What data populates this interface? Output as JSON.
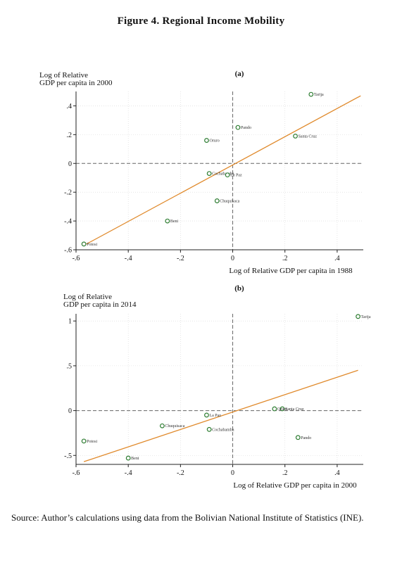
{
  "figure_title": "Figure 4. Regional Income Mobility",
  "source_note": "Source: Author’s calculations using data from the Bolivian National Institute of Statistics (INE).",
  "chart_data": [
    {
      "type": "scatter",
      "panel_label": "(a)",
      "xlabel": "Log of Relative GDP per capita in 1988",
      "ylabel_lines": [
        "Log of Relative",
        "GDP per capita in 2000"
      ],
      "xlim": [
        -0.6,
        0.5
      ],
      "ylim": [
        -0.6,
        0.5
      ],
      "xticks": [
        -0.6,
        -0.4,
        -0.2,
        0,
        0.2,
        0.4
      ],
      "xtick_labels": [
        "-.6",
        "-.4",
        "-.2",
        "0",
        ".2",
        ".4"
      ],
      "yticks": [
        -0.6,
        -0.4,
        -0.2,
        0,
        0.2,
        0.4
      ],
      "ytick_labels": [
        "-.6",
        "-.4",
        "-.2",
        "0",
        ".2",
        ".4"
      ],
      "reference_lines": {
        "x": 0,
        "y": 0,
        "style": "dashed"
      },
      "grid": true,
      "fit_line": {
        "x1": -0.56,
        "y1": -0.56,
        "x2": 0.49,
        "y2": 0.47,
        "color": "#e08a2c"
      },
      "marker_color": "#2e7d32",
      "points": [
        {
          "label": "Tarija",
          "x": 0.3,
          "y": 0.48,
          "anchor": "left"
        },
        {
          "label": "Pando",
          "x": 0.02,
          "y": 0.25,
          "anchor": "left"
        },
        {
          "label": "Santa Cruz",
          "x": 0.24,
          "y": 0.19,
          "anchor": "left"
        },
        {
          "label": "Oruro",
          "x": -0.1,
          "y": 0.16,
          "anchor": "left"
        },
        {
          "label": "Cochabamba",
          "x": -0.09,
          "y": -0.07,
          "anchor": "left"
        },
        {
          "label": "La Paz",
          "x": -0.02,
          "y": -0.08,
          "anchor": "left"
        },
        {
          "label": "Chuquisaca",
          "x": -0.06,
          "y": -0.26,
          "anchor": "left"
        },
        {
          "label": "Beni",
          "x": -0.25,
          "y": -0.4,
          "anchor": "left"
        },
        {
          "label": "Potosi",
          "x": -0.57,
          "y": -0.56,
          "anchor": "left"
        }
      ]
    },
    {
      "type": "scatter",
      "panel_label": "(b)",
      "xlabel": "Log of Relative GDP per capita in 2000",
      "ylabel_lines": [
        "Log of Relative",
        "GDP per capita in 2014"
      ],
      "xlim": [
        -0.6,
        0.5
      ],
      "ylim": [
        -0.6,
        1.08
      ],
      "xticks": [
        -0.6,
        -0.4,
        -0.2,
        0,
        0.2,
        0.4
      ],
      "xtick_labels": [
        "-.6",
        "-.4",
        "-.2",
        "0",
        ".2",
        ".4"
      ],
      "yticks": [
        -0.5,
        0,
        0.5,
        1
      ],
      "ytick_labels": [
        "-.5",
        "0",
        ".5",
        "1"
      ],
      "reference_lines": {
        "x": 0,
        "y": 0,
        "style": "dashed"
      },
      "grid": true,
      "fit_line": {
        "x1": -0.57,
        "y1": -0.57,
        "x2": 0.48,
        "y2": 0.45,
        "color": "#e08a2c"
      },
      "marker_color": "#2e7d32",
      "points": [
        {
          "label": "Tarija",
          "x": 0.48,
          "y": 1.05,
          "anchor": "left"
        },
        {
          "label": "Pando",
          "x": 0.25,
          "y": -0.3,
          "anchor": "left"
        },
        {
          "label": "Santa Cruz",
          "x": 0.19,
          "y": 0.02,
          "anchor": "left"
        },
        {
          "label": "Oruro",
          "x": 0.16,
          "y": 0.02,
          "anchor": "left"
        },
        {
          "label": "La Paz",
          "x": -0.1,
          "y": -0.05,
          "anchor": "left"
        },
        {
          "label": "Cochabamba",
          "x": -0.09,
          "y": -0.21,
          "anchor": "left"
        },
        {
          "label": "Chuquisaca",
          "x": -0.27,
          "y": -0.17,
          "anchor": "left"
        },
        {
          "label": "Potosi",
          "x": -0.57,
          "y": -0.34,
          "anchor": "left"
        },
        {
          "label": "Beni",
          "x": -0.4,
          "y": -0.53,
          "anchor": "left"
        }
      ]
    }
  ]
}
